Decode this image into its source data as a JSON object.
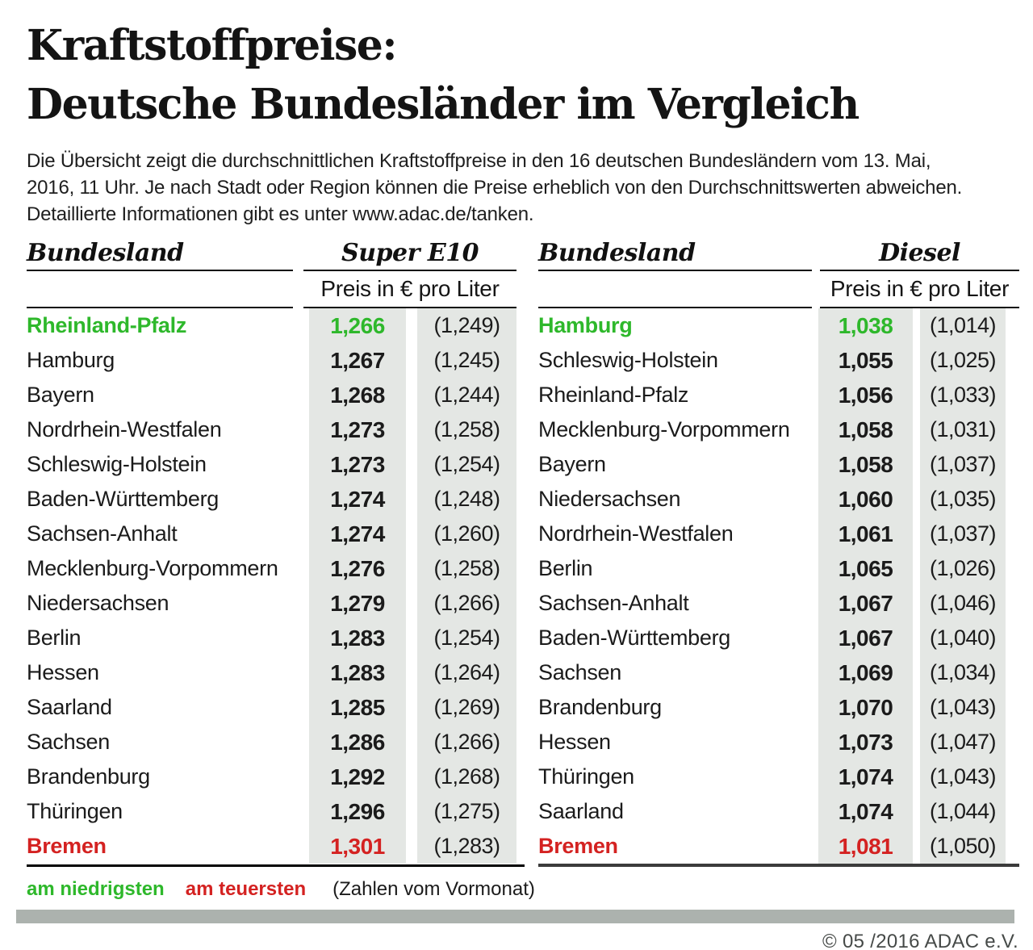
{
  "title": {
    "line1": "Kraftstoffpreise:",
    "line2": "Deutsche Bundesländer im Vergleich"
  },
  "intro": {
    "text": "Die Übersicht zeigt die durchschnittlichen Kraftstoffpreise in den 16 deutschen Bundesländern vom 13. Mai,\n2016, 11 Uhr. Je nach Stadt oder Region können die Preise erheblich von den Durchschnittswerten abweichen.\nDetaillierte Informationen gibt es unter www.adac.de/tanken."
  },
  "colors": {
    "green": "#2eb82b",
    "red": "#d42221",
    "stripe": "#e4e7e4",
    "bar": "#acb2ae"
  },
  "tables": [
    {
      "name_header": "Bundesland",
      "fuel_header": "Super E10",
      "unit_header": "Preis in € pro Liter",
      "rows": [
        {
          "state": "Rheinland-Pfalz",
          "price": "1,266",
          "prev": "(1,249)",
          "highlight": "lowest"
        },
        {
          "state": "Hamburg",
          "price": "1,267",
          "prev": "(1,245)",
          "highlight": null
        },
        {
          "state": "Bayern",
          "price": "1,268",
          "prev": "(1,244)",
          "highlight": null
        },
        {
          "state": "Nordrhein-Westfalen",
          "price": "1,273",
          "prev": "(1,258)",
          "highlight": null
        },
        {
          "state": "Schleswig-Holstein",
          "price": "1,273",
          "prev": "(1,254)",
          "highlight": null
        },
        {
          "state": "Baden-Württemberg",
          "price": "1,274",
          "prev": "(1,248)",
          "highlight": null
        },
        {
          "state": "Sachsen-Anhalt",
          "price": "1,274",
          "prev": "(1,260)",
          "highlight": null
        },
        {
          "state": "Mecklenburg-Vorpommern",
          "price": "1,276",
          "prev": "(1,258)",
          "highlight": null
        },
        {
          "state": "Niedersachsen",
          "price": "1,279",
          "prev": "(1,266)",
          "highlight": null
        },
        {
          "state": "Berlin",
          "price": "1,283",
          "prev": "(1,254)",
          "highlight": null
        },
        {
          "state": "Hessen",
          "price": "1,283",
          "prev": "(1,264)",
          "highlight": null
        },
        {
          "state": "Saarland",
          "price": "1,285",
          "prev": "(1,269)",
          "highlight": null
        },
        {
          "state": "Sachsen",
          "price": "1,286",
          "prev": "(1,266)",
          "highlight": null
        },
        {
          "state": "Brandenburg",
          "price": "1,292",
          "prev": "(1,268)",
          "highlight": null
        },
        {
          "state": "Thüringen",
          "price": "1,296",
          "prev": "(1,275)",
          "highlight": null
        },
        {
          "state": "Bremen",
          "price": "1,301",
          "prev": "(1,283)",
          "highlight": "highest"
        }
      ]
    },
    {
      "name_header": "Bundesland",
      "fuel_header": "Diesel",
      "unit_header": "Preis in € pro Liter",
      "rows": [
        {
          "state": "Hamburg",
          "price": "1,038",
          "prev": "(1,014)",
          "highlight": "lowest"
        },
        {
          "state": "Schleswig-Holstein",
          "price": "1,055",
          "prev": "(1,025)",
          "highlight": null
        },
        {
          "state": "Rheinland-Pfalz",
          "price": "1,056",
          "prev": "(1,033)",
          "highlight": null
        },
        {
          "state": "Mecklenburg-Vorpommern",
          "price": "1,058",
          "prev": "(1,031)",
          "highlight": null
        },
        {
          "state": "Bayern",
          "price": "1,058",
          "prev": "(1,037)",
          "highlight": null
        },
        {
          "state": "Niedersachsen",
          "price": "1,060",
          "prev": "(1,035)",
          "highlight": null
        },
        {
          "state": "Nordrhein-Westfalen",
          "price": "1,061",
          "prev": "(1,037)",
          "highlight": null
        },
        {
          "state": "Berlin",
          "price": "1,065",
          "prev": "(1,026)",
          "highlight": null
        },
        {
          "state": "Sachsen-Anhalt",
          "price": "1,067",
          "prev": "(1,046)",
          "highlight": null
        },
        {
          "state": "Baden-Württemberg",
          "price": "1,067",
          "prev": "(1,040)",
          "highlight": null
        },
        {
          "state": "Sachsen",
          "price": "1,069",
          "prev": "(1,034)",
          "highlight": null
        },
        {
          "state": "Brandenburg",
          "price": "1,070",
          "prev": "(1,043)",
          "highlight": null
        },
        {
          "state": "Hessen",
          "price": "1,073",
          "prev": "(1,047)",
          "highlight": null
        },
        {
          "state": "Thüringen",
          "price": "1,074",
          "prev": "(1,043)",
          "highlight": null
        },
        {
          "state": "Saarland",
          "price": "1,074",
          "prev": "(1,044)",
          "highlight": null
        },
        {
          "state": "Bremen",
          "price": "1,081",
          "prev": "(1,050)",
          "highlight": "highest"
        }
      ]
    }
  ],
  "legend": {
    "lowest": "am niedrigsten",
    "highest": "am teuersten",
    "note": "(Zahlen vom Vormonat)"
  },
  "footer": {
    "copyright": "© 05 /2016 ADAC e.V."
  },
  "chart_data": [
    {
      "type": "table",
      "title": "Super E10",
      "unit": "Preis in € pro Liter",
      "columns": [
        "Bundesland",
        "Preis",
        "Vormonat"
      ],
      "rows": [
        [
          "Rheinland-Pfalz",
          1.266,
          1.249
        ],
        [
          "Hamburg",
          1.267,
          1.245
        ],
        [
          "Bayern",
          1.268,
          1.244
        ],
        [
          "Nordrhein-Westfalen",
          1.273,
          1.258
        ],
        [
          "Schleswig-Holstein",
          1.273,
          1.254
        ],
        [
          "Baden-Württemberg",
          1.274,
          1.248
        ],
        [
          "Sachsen-Anhalt",
          1.274,
          1.26
        ],
        [
          "Mecklenburg-Vorpommern",
          1.276,
          1.258
        ],
        [
          "Niedersachsen",
          1.279,
          1.266
        ],
        [
          "Berlin",
          1.283,
          1.254
        ],
        [
          "Hessen",
          1.283,
          1.264
        ],
        [
          "Saarland",
          1.285,
          1.269
        ],
        [
          "Sachsen",
          1.286,
          1.266
        ],
        [
          "Brandenburg",
          1.292,
          1.268
        ],
        [
          "Thüringen",
          1.296,
          1.275
        ],
        [
          "Bremen",
          1.301,
          1.283
        ]
      ],
      "annotations": {
        "lowest": "Rheinland-Pfalz",
        "highest": "Bremen"
      }
    },
    {
      "type": "table",
      "title": "Diesel",
      "unit": "Preis in € pro Liter",
      "columns": [
        "Bundesland",
        "Preis",
        "Vormonat"
      ],
      "rows": [
        [
          "Hamburg",
          1.038,
          1.014
        ],
        [
          "Schleswig-Holstein",
          1.055,
          1.025
        ],
        [
          "Rheinland-Pfalz",
          1.056,
          1.033
        ],
        [
          "Mecklenburg-Vorpommern",
          1.058,
          1.031
        ],
        [
          "Bayern",
          1.058,
          1.037
        ],
        [
          "Niedersachsen",
          1.06,
          1.035
        ],
        [
          "Nordrhein-Westfalen",
          1.061,
          1.037
        ],
        [
          "Berlin",
          1.065,
          1.026
        ],
        [
          "Sachsen-Anhalt",
          1.067,
          1.046
        ],
        [
          "Baden-Württemberg",
          1.067,
          1.04
        ],
        [
          "Sachsen",
          1.069,
          1.034
        ],
        [
          "Brandenburg",
          1.07,
          1.043
        ],
        [
          "Hessen",
          1.073,
          1.047
        ],
        [
          "Thüringen",
          1.074,
          1.043
        ],
        [
          "Saarland",
          1.074,
          1.044
        ],
        [
          "Bremen",
          1.081,
          1.05
        ]
      ],
      "annotations": {
        "lowest": "Hamburg",
        "highest": "Bremen"
      }
    }
  ]
}
